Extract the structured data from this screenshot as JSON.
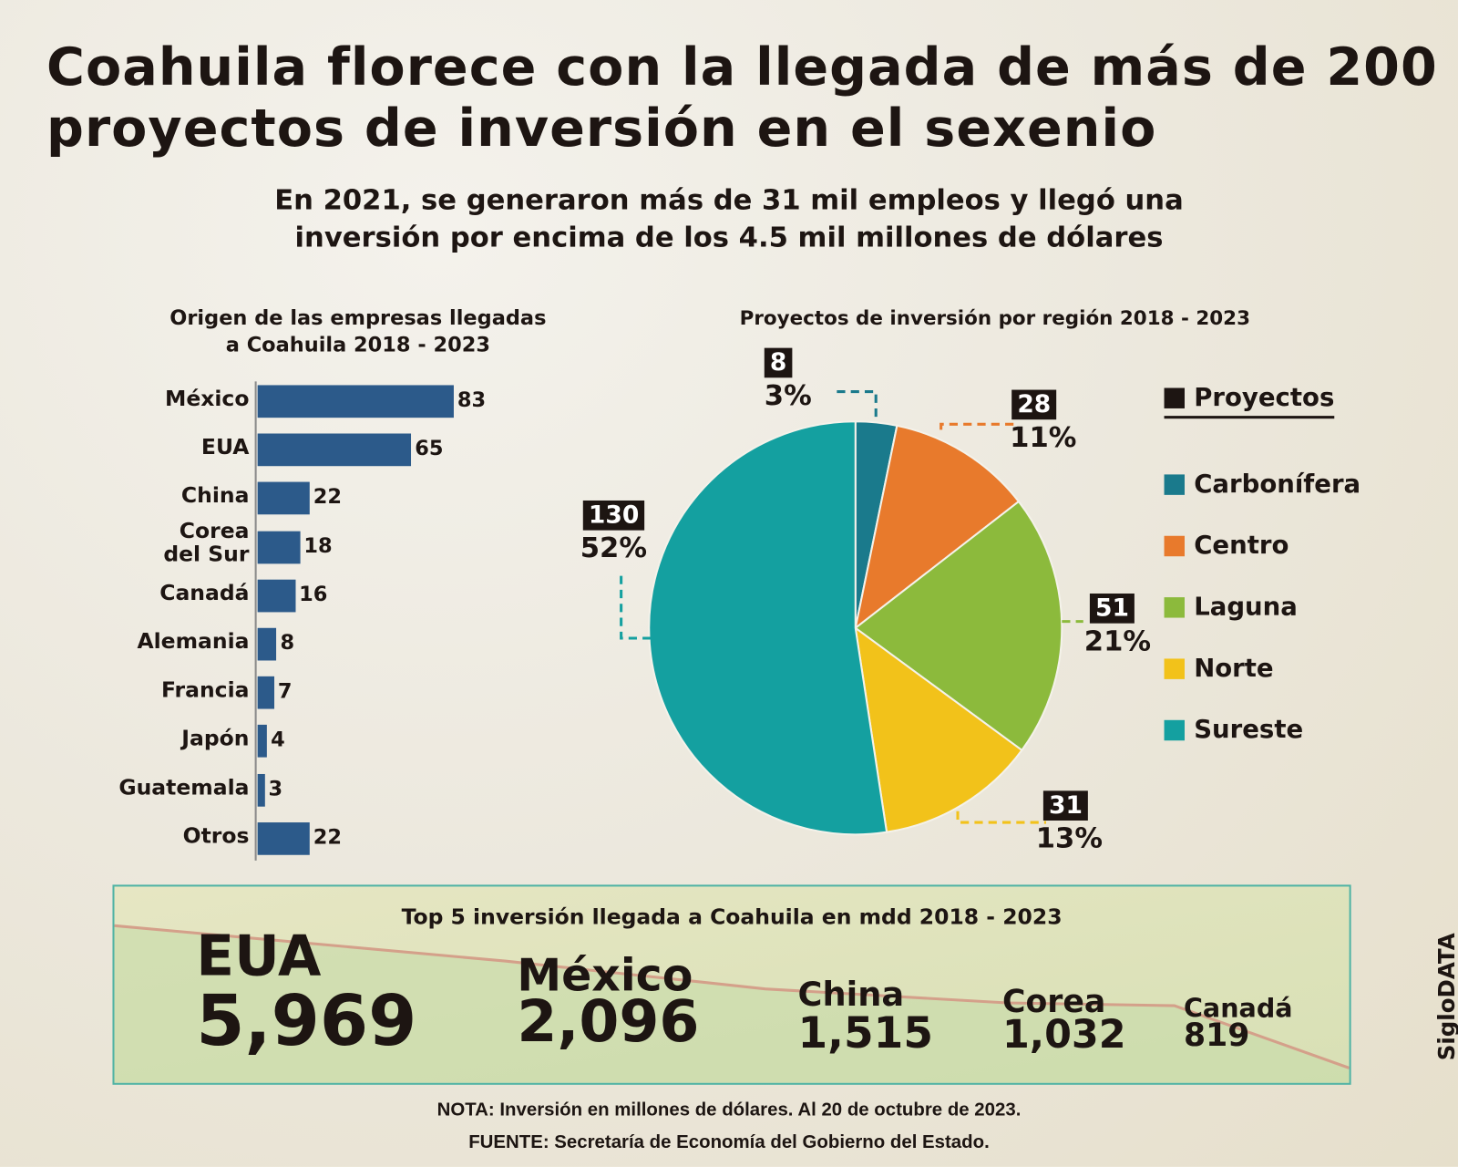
{
  "title": "Coahuila florece con la llegada de más de 200 proyectos de inversión en el sexenio",
  "subtitle_line1": "En 2021, se generaron más de 31 mil empleos y llegó una",
  "subtitle_line2": "inversión por encima de los 4.5 mil millones de dólares",
  "chart_data": [
    {
      "type": "bar",
      "orientation": "horizontal",
      "title_line1": "Origen de las empresas llegadas",
      "title_line2": "a Coahuila 2018 - 2023",
      "categories": [
        "México",
        "EUA",
        "China",
        "Corea del Sur",
        "Canadá",
        "Alemania",
        "Francia",
        "Japón",
        "Guatemala",
        "Otros"
      ],
      "values": [
        83,
        65,
        22,
        18,
        16,
        8,
        7,
        4,
        3,
        22
      ],
      "bar_color": "#2c5a8a",
      "grid": false
    },
    {
      "type": "pie",
      "title": "Proyectos de inversión por región 2018 - 2023",
      "legend_title": "Proyectos",
      "legend_position": "right",
      "slices": [
        {
          "name": "Carbonífera",
          "value": 8,
          "pct": "3%",
          "color": "#1a7a8c"
        },
        {
          "name": "Centro",
          "value": 28,
          "pct": "11%",
          "color": "#e87a2c"
        },
        {
          "name": "Laguna",
          "value": 51,
          "pct": "21%",
          "color": "#8cba3c"
        },
        {
          "name": "Norte",
          "value": 31,
          "pct": "13%",
          "color": "#f2c21a"
        },
        {
          "name": "Sureste",
          "value": 130,
          "pct": "52%",
          "color": "#14a0a0"
        }
      ]
    }
  ],
  "top5": {
    "title": "Top 5 inversión llegada a Coahuila en mdd 2018 - 2023",
    "items": [
      {
        "name": "EUA",
        "value": "5,969"
      },
      {
        "name": "México",
        "value": "2,096"
      },
      {
        "name": "China",
        "value": "1,515"
      },
      {
        "name": "Corea",
        "value": "1,032"
      },
      {
        "name": "Canadá",
        "value": "819"
      }
    ]
  },
  "note": "NOTA: Inversión en millones de dólares. Al 20 de octubre de 2023.",
  "source": "FUENTE: Secretaría de Economía del Gobierno del Estado.",
  "brand": "SigloDATA"
}
